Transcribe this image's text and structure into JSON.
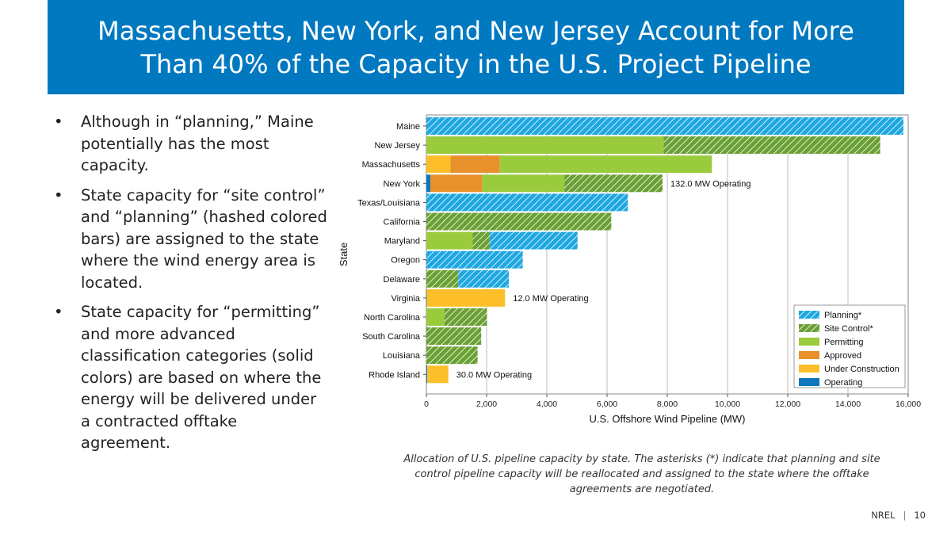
{
  "slide": {
    "title_line1": "Massachusetts, New York, and New Jersey Account for More",
    "title_line2": "Than 40% of the Capacity in the U.S. Project Pipeline",
    "bullets": [
      "Although in “planning,” Maine potentially has the most capacity.",
      "State capacity for “site control” and “planning” (hashed colored bars) are assigned to the state where the wind energy area is located.",
      "State capacity for “permitting” and more advanced classification categories (solid colors) are based on where the energy will be delivered under a contracted offtake agreement."
    ],
    "bullet_char": "•",
    "caption": "Allocation of U.S. pipeline capacity by state. The asterisks (*) indicate that planning and site control pipeline capacity will be reallocated and assigned to the state where the offtake agreements are negotiated.",
    "footer_org": "NREL",
    "footer_sep": "|",
    "page_number": "10"
  },
  "colors": {
    "title_bg": "#0079c1",
    "Planning*": "#1ea7e1",
    "Site Control*": "#6aa034",
    "Permitting": "#9acb3c",
    "Approved": "#e8912a",
    "Under Construction": "#fcbf2a",
    "Operating": "#0d78c0"
  },
  "chart_data": {
    "type": "bar",
    "orientation": "horizontal",
    "stacked": true,
    "xlabel": "U.S. Offshore Wind Pipeline (MW)",
    "ylabel": "State",
    "xlim": [
      0,
      16000
    ],
    "x_ticks": [
      "0",
      "2,000",
      "4,000",
      "6,000",
      "8,000",
      "10,000",
      "12,000",
      "14,000",
      "16,000"
    ],
    "grid": "vertical",
    "legend_position": "bottom-right",
    "categories": [
      "Maine",
      "New Jersey",
      "Massachusetts",
      "New York",
      "Texas/Louisiana",
      "California",
      "Maryland",
      "Oregon",
      "Delaware",
      "Virginia",
      "North Carolina",
      "South Carolina",
      "Louisiana",
      "Rhode Island"
    ],
    "series": [
      {
        "name": "Operating",
        "pattern": "solid",
        "values": [
          0,
          0,
          0,
          132,
          0,
          0,
          0,
          0,
          0,
          12,
          0,
          0,
          0,
          30
        ]
      },
      {
        "name": "Under Construction",
        "pattern": "solid",
        "values": [
          0,
          0,
          800,
          0,
          0,
          0,
          0,
          0,
          0,
          2600,
          0,
          0,
          0,
          700
        ]
      },
      {
        "name": "Approved",
        "pattern": "solid",
        "values": [
          0,
          0,
          1640,
          1720,
          0,
          0,
          0,
          0,
          0,
          0,
          0,
          0,
          0,
          0
        ]
      },
      {
        "name": "Permitting",
        "pattern": "solid",
        "values": [
          0,
          7880,
          7040,
          2730,
          0,
          0,
          1540,
          0,
          0,
          0,
          600,
          0,
          0,
          0
        ]
      },
      {
        "name": "Site Control*",
        "pattern": "hatched",
        "values": [
          0,
          7190,
          0,
          3260,
          0,
          6140,
          560,
          0,
          1060,
          0,
          1410,
          1820,
          1700,
          0
        ]
      },
      {
        "name": "Planning*",
        "pattern": "hatched",
        "values": [
          15840,
          0,
          0,
          0,
          6690,
          0,
          2920,
          3200,
          1680,
          0,
          0,
          0,
          0,
          0
        ]
      }
    ],
    "legend_order": [
      "Planning*",
      "Site Control*",
      "Permitting",
      "Approved",
      "Under Construction",
      "Operating"
    ],
    "annotations": [
      {
        "category": "New York",
        "text": "132.0 MW Operating"
      },
      {
        "category": "Virginia",
        "text": "12.0 MW Operating"
      },
      {
        "category": "Rhode Island",
        "text": "30.0 MW Operating"
      }
    ]
  }
}
